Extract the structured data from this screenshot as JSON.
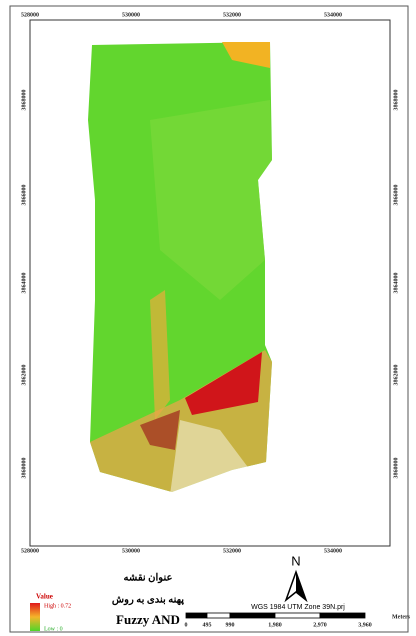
{
  "frame": {
    "top": [
      "528000",
      "530000",
      "532000",
      "534000"
    ],
    "bottom": [
      "528000",
      "530000",
      "532000",
      "534000"
    ],
    "left": [
      "3868000",
      "3866000",
      "3864000",
      "3862000",
      "3860000"
    ],
    "right": [
      "3868000",
      "3866000",
      "3864000",
      "3862000",
      "3860000"
    ]
  },
  "legend": {
    "title": "Value",
    "high": "High : 0.72",
    "low": "Low : 0"
  },
  "map_title": [
    "عنوان نقشه",
    "پهنه بندی به روش",
    "Fuzzy AND"
  ],
  "north": "N",
  "projection": "WGS 1984 UTM Zone 39N.prj",
  "scale": {
    "labels": [
      "0",
      "495",
      "990",
      "1,980",
      "2,970",
      "3,960"
    ],
    "unit": "Meters"
  }
}
